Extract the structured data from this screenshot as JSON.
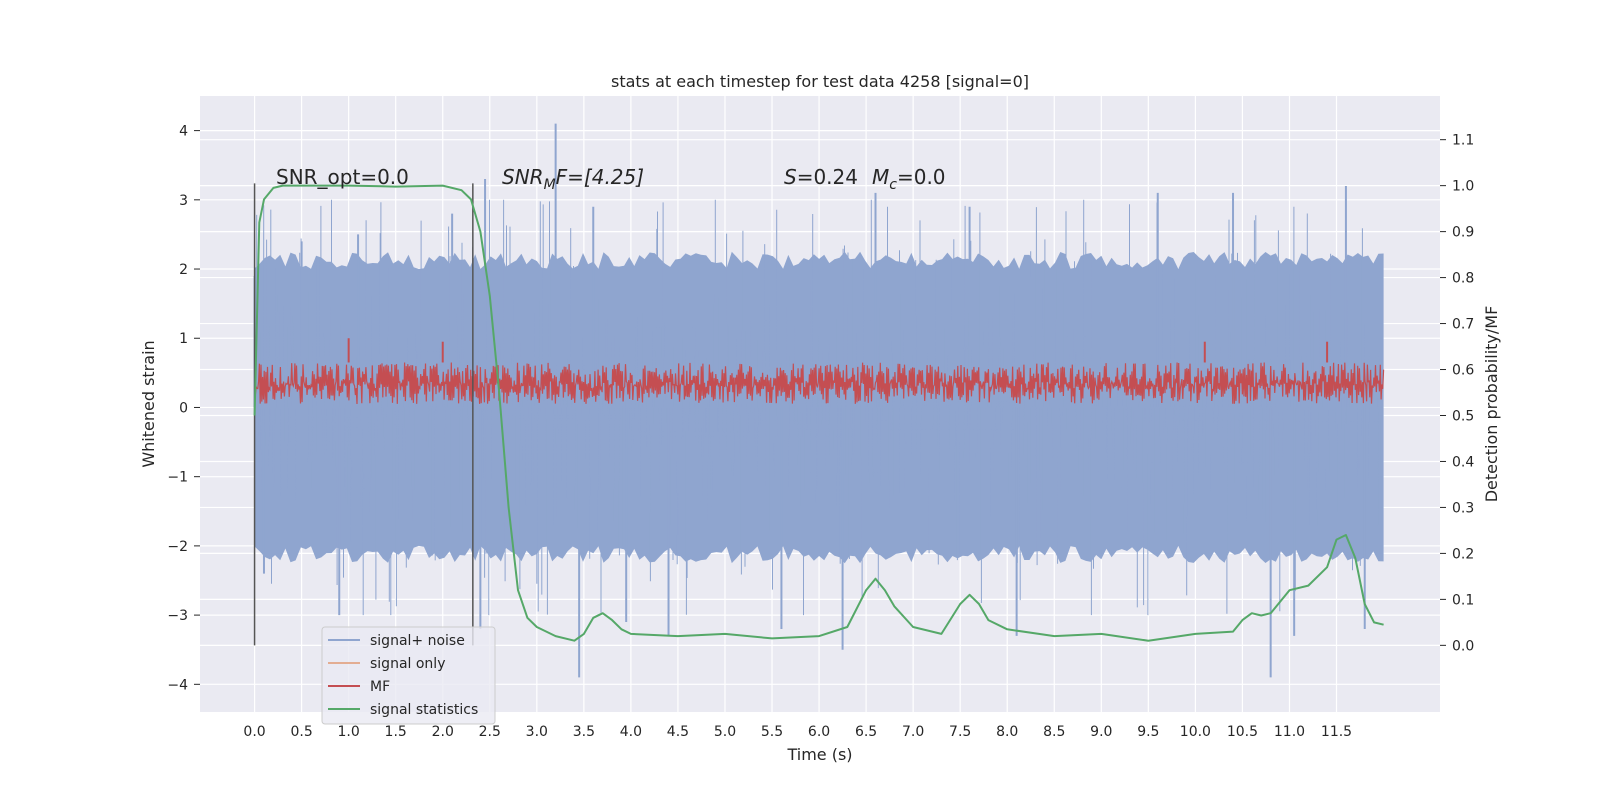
{
  "chart_data": {
    "type": "line",
    "title": "stats at each timestep for test data 4258 [signal=0]",
    "xlabel": "Time (s)",
    "ylabel": "Whitened strain",
    "y2label": "Detection probability/MF",
    "xlim": [
      -0.58,
      12.6
    ],
    "ylim": [
      -4.4,
      4.5
    ],
    "y2lim": [
      -0.145,
      1.195
    ],
    "x_ticks": [
      "0.0",
      "0.5",
      "1.0",
      "1.5",
      "2.0",
      "2.5",
      "3.0",
      "3.5",
      "4.0",
      "4.5",
      "5.0",
      "5.5",
      "6.0",
      "6.5",
      "7.0",
      "7.5",
      "8.0",
      "8.5",
      "9.0",
      "9.5",
      "10.0",
      "10.5",
      "11.0",
      "11.5"
    ],
    "y_ticks": [
      "4",
      "3",
      "2",
      "1",
      "0",
      "−1",
      "−2",
      "−3",
      "−4"
    ],
    "y2_ticks": [
      "1.1",
      "1.0",
      "0.9",
      "0.8",
      "0.7",
      "0.6",
      "0.5",
      "0.4",
      "0.3",
      "0.2",
      "0.1",
      "0.0"
    ],
    "grid": true,
    "legend_placement": "lower-left",
    "vlines_x": [
      0.0,
      2.32
    ],
    "series": [
      {
        "name": "signal+ noise",
        "color": "#8fa5cf",
        "axis": "left",
        "description_values": {
          "x_range": [
            0.0,
            12.0
          ],
          "band_typical": [
            -2.0,
            2.0
          ],
          "spikes": [
            [
              0.0,
              1.9
            ],
            [
              0.1,
              -2.4
            ],
            [
              0.5,
              2.4
            ],
            [
              0.9,
              -3.0
            ],
            [
              1.1,
              2.5
            ],
            [
              2.1,
              2.8
            ],
            [
              2.4,
              -3.2
            ],
            [
              2.45,
              3.3
            ],
            [
              3.2,
              4.1
            ],
            [
              3.45,
              -3.9
            ],
            [
              3.6,
              2.9
            ],
            [
              3.95,
              -3.1
            ],
            [
              4.4,
              -3.3
            ],
            [
              5.6,
              -3.2
            ],
            [
              6.25,
              -3.5
            ],
            [
              6.6,
              3.1
            ],
            [
              7.6,
              2.9
            ],
            [
              8.1,
              -3.3
            ],
            [
              9.6,
              3.1
            ],
            [
              10.4,
              3.1
            ],
            [
              10.8,
              -3.9
            ],
            [
              11.05,
              -3.3
            ],
            [
              11.6,
              3.2
            ],
            [
              11.8,
              -3.2
            ]
          ]
        }
      },
      {
        "name": "signal only",
        "color": "#dd8452",
        "axis": "left",
        "values": []
      },
      {
        "name": "MF",
        "color": "#c44e52",
        "axis": "left",
        "description_values": {
          "x_range": [
            0.0,
            12.0
          ],
          "band": [
            0.05,
            0.65
          ],
          "peaks": [
            [
              1.0,
              1.0
            ],
            [
              2.0,
              0.95
            ],
            [
              10.1,
              0.95
            ],
            [
              11.4,
              0.95
            ]
          ]
        }
      },
      {
        "name": "signal statistics",
        "color": "#55a868",
        "axis": "right",
        "x": [
          0.0,
          0.05,
          0.1,
          0.2,
          0.3,
          0.5,
          1.0,
          1.5,
          2.0,
          2.2,
          2.3,
          2.4,
          2.5,
          2.6,
          2.7,
          2.8,
          2.9,
          3.0,
          3.2,
          3.4,
          3.5,
          3.6,
          3.7,
          3.8,
          3.9,
          4.0,
          4.5,
          5.0,
          5.5,
          6.0,
          6.3,
          6.5,
          6.6,
          6.7,
          6.8,
          7.0,
          7.3,
          7.5,
          7.6,
          7.7,
          7.8,
          8.0,
          8.5,
          9.0,
          9.5,
          10.0,
          10.4,
          10.5,
          10.6,
          10.7,
          10.8,
          11.0,
          11.2,
          11.4,
          11.5,
          11.6,
          11.7,
          11.8,
          11.9,
          12.0
        ],
        "values": [
          0.5,
          0.92,
          0.97,
          0.995,
          1.0,
          1.0,
          1.0,
          0.998,
          1.0,
          0.99,
          0.97,
          0.9,
          0.76,
          0.55,
          0.3,
          0.12,
          0.06,
          0.04,
          0.02,
          0.01,
          0.025,
          0.06,
          0.07,
          0.055,
          0.035,
          0.025,
          0.02,
          0.025,
          0.015,
          0.02,
          0.04,
          0.12,
          0.145,
          0.12,
          0.085,
          0.04,
          0.025,
          0.09,
          0.11,
          0.09,
          0.055,
          0.035,
          0.02,
          0.025,
          0.01,
          0.025,
          0.03,
          0.055,
          0.07,
          0.065,
          0.07,
          0.12,
          0.13,
          0.17,
          0.23,
          0.24,
          0.19,
          0.09,
          0.05,
          0.045
        ]
      }
    ],
    "annotations": [
      {
        "id": "snr_opt",
        "text": "SNR_opt=0.0"
      },
      {
        "id": "snr_mf",
        "text": "SNR",
        "sub": "M",
        "tail": "F=[4.25]"
      },
      {
        "id": "s_mc",
        "s_var": "S",
        "s_val": "=0.24",
        "m_var": "M",
        "m_sub": "c",
        "m_val": "=0.0"
      }
    ]
  }
}
